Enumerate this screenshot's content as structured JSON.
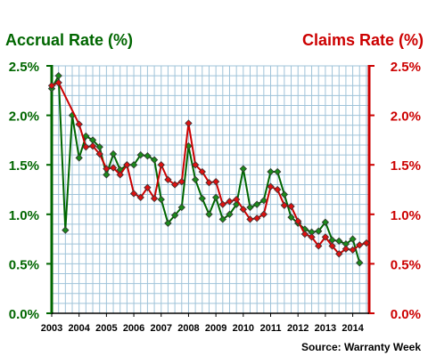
{
  "chart_data": {
    "type": "line",
    "title_left": "Accrual Rate (%)",
    "title_right": "Claims Rate (%)",
    "source": "Source: Warranty Week",
    "y_ticks_left": [
      "0.0%",
      "0.5%",
      "1.0%",
      "1.5%",
      "2.0%",
      "2.5%"
    ],
    "y_ticks_right": [
      "0.0%",
      "0.5%",
      "1.0%",
      "1.5%",
      "2.0%",
      "2.5%"
    ],
    "ylim": [
      0,
      2.5
    ],
    "xlim": [
      2003.0,
      2014.6
    ],
    "x_ticks": [
      "2003",
      "2004",
      "2005",
      "2006",
      "2007",
      "2008",
      "2009",
      "2010",
      "2011",
      "2012",
      "2013",
      "2014"
    ],
    "grid": true,
    "colors": {
      "accrual": "#006600",
      "accrual_marker": "#1a8a1a",
      "claims": "#cc0000",
      "claims_marker": "#dd1111",
      "grid": "#9fc3d9"
    },
    "series": [
      {
        "name": "Accrual Rate (%)",
        "axis": "left",
        "x": [
          2003.0,
          2003.25,
          2003.5,
          2003.75,
          2004.0,
          2004.25,
          2004.5,
          2004.75,
          2005.0,
          2005.25,
          2005.5,
          2005.75,
          2006.0,
          2006.25,
          2006.5,
          2006.75,
          2007.0,
          2007.25,
          2007.5,
          2007.75,
          2008.0,
          2008.25,
          2008.5,
          2008.75,
          2009.0,
          2009.25,
          2009.5,
          2009.75,
          2010.0,
          2010.25,
          2010.5,
          2010.75,
          2011.0,
          2011.25,
          2011.5,
          2011.75,
          2012.0,
          2012.25,
          2012.5,
          2012.75,
          2013.0,
          2013.25,
          2013.5,
          2013.75,
          2014.0,
          2014.25
        ],
        "values": [
          2.27,
          2.4,
          0.84,
          2.0,
          1.57,
          1.79,
          1.75,
          1.68,
          1.4,
          1.61,
          1.45,
          1.5,
          1.5,
          1.6,
          1.59,
          1.55,
          1.15,
          0.91,
          0.99,
          1.07,
          1.69,
          1.35,
          1.16,
          1.0,
          1.17,
          0.95,
          1.0,
          1.1,
          1.46,
          1.07,
          1.1,
          1.14,
          1.43,
          1.43,
          1.2,
          0.97,
          0.91,
          0.85,
          0.82,
          0.83,
          0.92,
          0.74,
          0.73,
          0.7,
          0.75,
          0.51
        ]
      },
      {
        "name": "Claims Rate (%)",
        "axis": "right",
        "x": [
          2003.0,
          2003.25,
          2004.0,
          2004.25,
          2004.5,
          2004.75,
          2005.0,
          2005.25,
          2005.5,
          2005.75,
          2006.0,
          2006.25,
          2006.5,
          2006.75,
          2007.0,
          2007.25,
          2007.5,
          2007.75,
          2008.0,
          2008.25,
          2008.5,
          2008.75,
          2009.0,
          2009.25,
          2009.5,
          2009.75,
          2010.0,
          2010.25,
          2010.5,
          2010.75,
          2011.0,
          2011.25,
          2011.5,
          2011.75,
          2012.0,
          2012.25,
          2012.5,
          2012.75,
          2013.0,
          2013.25,
          2013.5,
          2013.75,
          2014.0,
          2014.25,
          2014.5
        ],
        "values": [
          2.3,
          2.33,
          1.91,
          1.68,
          1.69,
          1.61,
          1.46,
          1.47,
          1.4,
          1.5,
          1.21,
          1.17,
          1.27,
          1.16,
          1.5,
          1.35,
          1.3,
          1.33,
          1.92,
          1.5,
          1.43,
          1.32,
          1.33,
          1.1,
          1.13,
          1.15,
          1.05,
          0.95,
          0.96,
          1.0,
          1.28,
          1.25,
          1.09,
          1.08,
          0.93,
          0.8,
          0.77,
          0.68,
          0.77,
          0.68,
          0.6,
          0.65,
          0.64,
          0.69,
          0.71
        ]
      }
    ]
  }
}
